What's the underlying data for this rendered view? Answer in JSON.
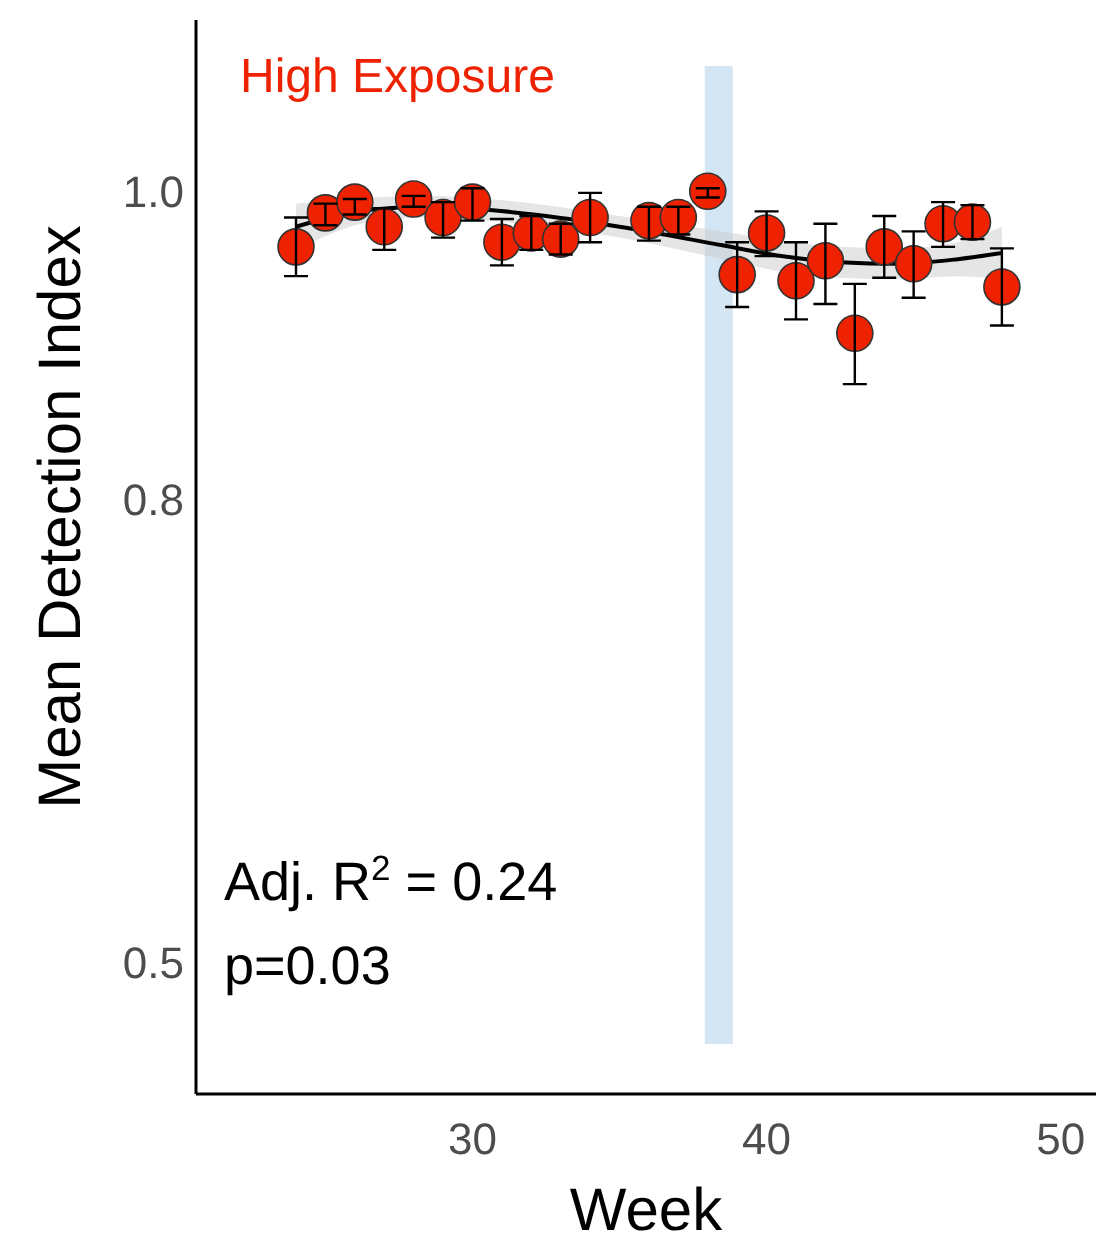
{
  "chart_data": {
    "type": "scatter",
    "title": "High Exposure",
    "xlabel": "Week",
    "ylabel": "Mean Detection Index",
    "x": [
      24,
      25,
      26,
      27,
      28,
      29,
      30,
      31,
      32,
      33,
      34,
      36,
      37,
      38,
      39,
      40,
      41,
      42,
      43,
      44,
      45,
      46,
      47,
      48
    ],
    "xlim": [
      20.6,
      51.2
    ],
    "xticks": [
      30,
      40,
      50
    ],
    "ylim": [
      0.415,
      1.111
    ],
    "yticks": [
      0.5,
      0.8,
      {
        "value": 1,
        "label": "1.0"
      }
    ],
    "series": [
      {
        "color": "#ee2200",
        "marker": "circle",
        "values": [
          0.964,
          0.986,
          0.993,
          0.977,
          0.995,
          0.983,
          0.993,
          0.967,
          0.973,
          0.969,
          0.983,
          0.981,
          0.983,
          1.0,
          0.946,
          0.973,
          0.942,
          0.955,
          0.908,
          0.964,
          0.953,
          0.979,
          0.98,
          0.938
        ],
        "errors": [
          [
            0.945,
            0.983
          ],
          [
            0.978,
            0.992
          ],
          [
            0.985,
            0.995
          ],
          [
            0.962,
            0.989
          ],
          [
            0.99,
            0.997
          ],
          [
            0.97,
            0.993
          ],
          [
            0.981,
            1.002
          ],
          [
            0.952,
            0.982
          ],
          [
            0.962,
            0.984
          ],
          [
            0.959,
            0.979
          ],
          [
            0.967,
            0.999
          ],
          [
            0.968,
            0.99
          ],
          [
            0.972,
            0.99
          ],
          [
            0.996,
            1.002
          ],
          [
            0.925,
            0.967
          ],
          [
            0.958,
            0.987
          ],
          [
            0.917,
            0.967
          ],
          [
            0.927,
            0.979
          ],
          [
            0.875,
            0.94
          ],
          [
            0.944,
            0.984
          ],
          [
            0.931,
            0.974
          ],
          [
            0.964,
            0.993
          ],
          [
            0.969,
            0.991
          ],
          [
            0.913,
            0.963
          ]
        ]
      },
      {
        "type": "line",
        "color": "#000000",
        "x": [
          24,
          26.5,
          28.5,
          30.5,
          32.5,
          35,
          38.5,
          40.5,
          42.5,
          44.5,
          46.5,
          48
        ],
        "values": [
          0.977,
          0.988,
          0.99,
          0.988,
          0.984,
          0.977,
          0.965,
          0.958,
          0.954,
          0.953,
          0.956,
          0.96
        ],
        "lower": [
          0.962,
          0.98,
          0.983,
          0.981,
          0.977,
          0.97,
          0.956,
          0.948,
          0.944,
          0.943,
          0.945,
          0.943
        ],
        "upper": [
          0.992,
          0.996,
          0.997,
          0.995,
          0.991,
          0.984,
          0.974,
          0.968,
          0.964,
          0.963,
          0.967,
          0.977
        ]
      }
    ],
    "bands": [
      {
        "axis": "x",
        "from": 37.9,
        "to": 38.85,
        "color": "#cfe2f3"
      }
    ],
    "annotations": [
      "Adj. R$^{2}$ = 0.24",
      "p=0.03"
    ],
    "grid": false,
    "line_style": "solid"
  }
}
